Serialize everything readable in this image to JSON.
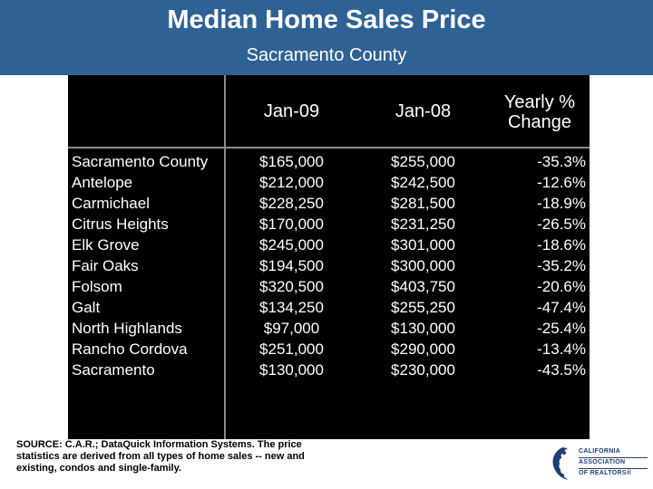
{
  "header": {
    "title": "Median Home Sales Price",
    "subtitle": "Sacramento County"
  },
  "table": {
    "columns": [
      "",
      "Jan-09",
      "Jan-08",
      "Yearly % Change"
    ],
    "rows": [
      {
        "name": "Sacramento County",
        "jan09": "$165,000",
        "jan08": "$255,000",
        "change": "-35.3%"
      },
      {
        "name": "Antelope",
        "jan09": "$212,000",
        "jan08": "$242,500",
        "change": "-12.6%"
      },
      {
        "name": "Carmichael",
        "jan09": "$228,250",
        "jan08": "$281,500",
        "change": "-18.9%"
      },
      {
        "name": "Citrus Heights",
        "jan09": "$170,000",
        "jan08": "$231,250",
        "change": "-26.5%"
      },
      {
        "name": "Elk Grove",
        "jan09": "$245,000",
        "jan08": "$301,000",
        "change": "-18.6%"
      },
      {
        "name": "Fair Oaks",
        "jan09": "$194,500",
        "jan08": "$300,000",
        "change": "-35.2%"
      },
      {
        "name": "Folsom",
        "jan09": "$320,500",
        "jan08": "$403,750",
        "change": "-20.6%"
      },
      {
        "name": "Galt",
        "jan09": "$134,250",
        "jan08": "$255,250",
        "change": "-47.4%"
      },
      {
        "name": "North Highlands",
        "jan09": "$97,000",
        "jan08": "$130,000",
        "change": "-25.4%"
      },
      {
        "name": "Rancho Cordova",
        "jan09": "$251,000",
        "jan08": "$290,000",
        "change": "-13.4%"
      },
      {
        "name": "Sacramento",
        "jan09": "$130,000",
        "jan08": "$230,000",
        "change": "-43.5%"
      }
    ]
  },
  "source_note": "SOURCE: C.A.R.; DataQuick Information Systems. The price statistics are derived from all types of home sales -- new and existing, condos and single-family.",
  "logo": {
    "line1": "CALIFORNIA",
    "line2": "ASSOCIATION",
    "line3": "OF REALTORS®"
  },
  "colors": {
    "header_bg": "#2f6294",
    "table_bg": "#000000",
    "logo_blue": "#1f3f73"
  }
}
